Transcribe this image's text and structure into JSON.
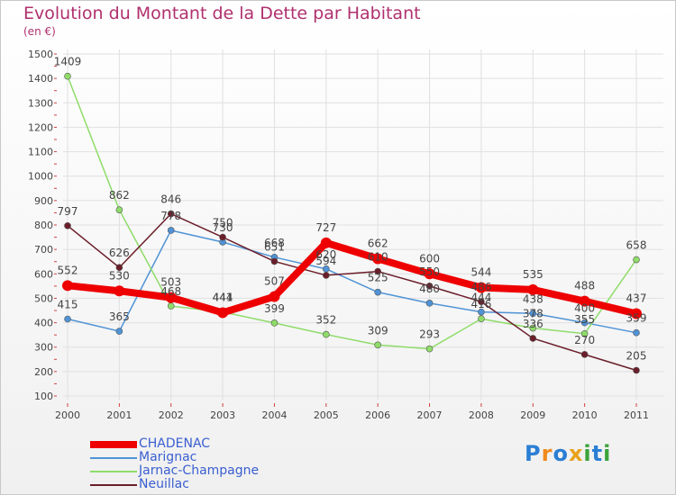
{
  "title": "Evolution du Montant de la Dette par Habitant",
  "subtitle": "(en €)",
  "logo": {
    "letters": [
      "P",
      "r",
      "o",
      "x",
      "i",
      "t",
      "i"
    ],
    "colors": [
      "#2a7fd4",
      "#f08a1c",
      "#2a7fd4",
      "#e8a21a",
      "#3aa33a",
      "#2a7fd4",
      "#3aa33a"
    ]
  },
  "chart_data": {
    "type": "line",
    "title": "Evolution du Montant de la Dette par Habitant",
    "ylabel": "(en €)",
    "x": [
      "2000",
      "2001",
      "2002",
      "2003",
      "2004",
      "2005",
      "2006",
      "2007",
      "2008",
      "2009",
      "2010",
      "2011"
    ],
    "ylim": [
      100,
      1500
    ],
    "yticks": [
      100,
      200,
      300,
      400,
      500,
      600,
      700,
      800,
      900,
      1000,
      1100,
      1200,
      1300,
      1400,
      1500
    ],
    "grid": true,
    "legend_position": "bottom-left",
    "series": [
      {
        "name": "CHADENAC",
        "color": "#ee0000",
        "values": [
          552,
          530,
          503,
          441,
          507,
          727,
          662,
          600,
          544,
          535,
          488,
          437
        ]
      },
      {
        "name": "Marignac",
        "color": "#4f93d6",
        "values": [
          415,
          365,
          778,
          730,
          668,
          620,
          525,
          480,
          444,
          438,
          400,
          359
        ]
      },
      {
        "name": "Jarnac-Champagne",
        "color": "#8fdc6a",
        "values": [
          1409,
          862,
          468,
          444,
          399,
          352,
          309,
          293,
          416,
          378,
          355,
          658
        ]
      },
      {
        "name": "Neuillac",
        "color": "#6b1e2a",
        "values": [
          797,
          626,
          846,
          750,
          651,
          594,
          610,
          550,
          486,
          336,
          270,
          205
        ]
      }
    ]
  }
}
